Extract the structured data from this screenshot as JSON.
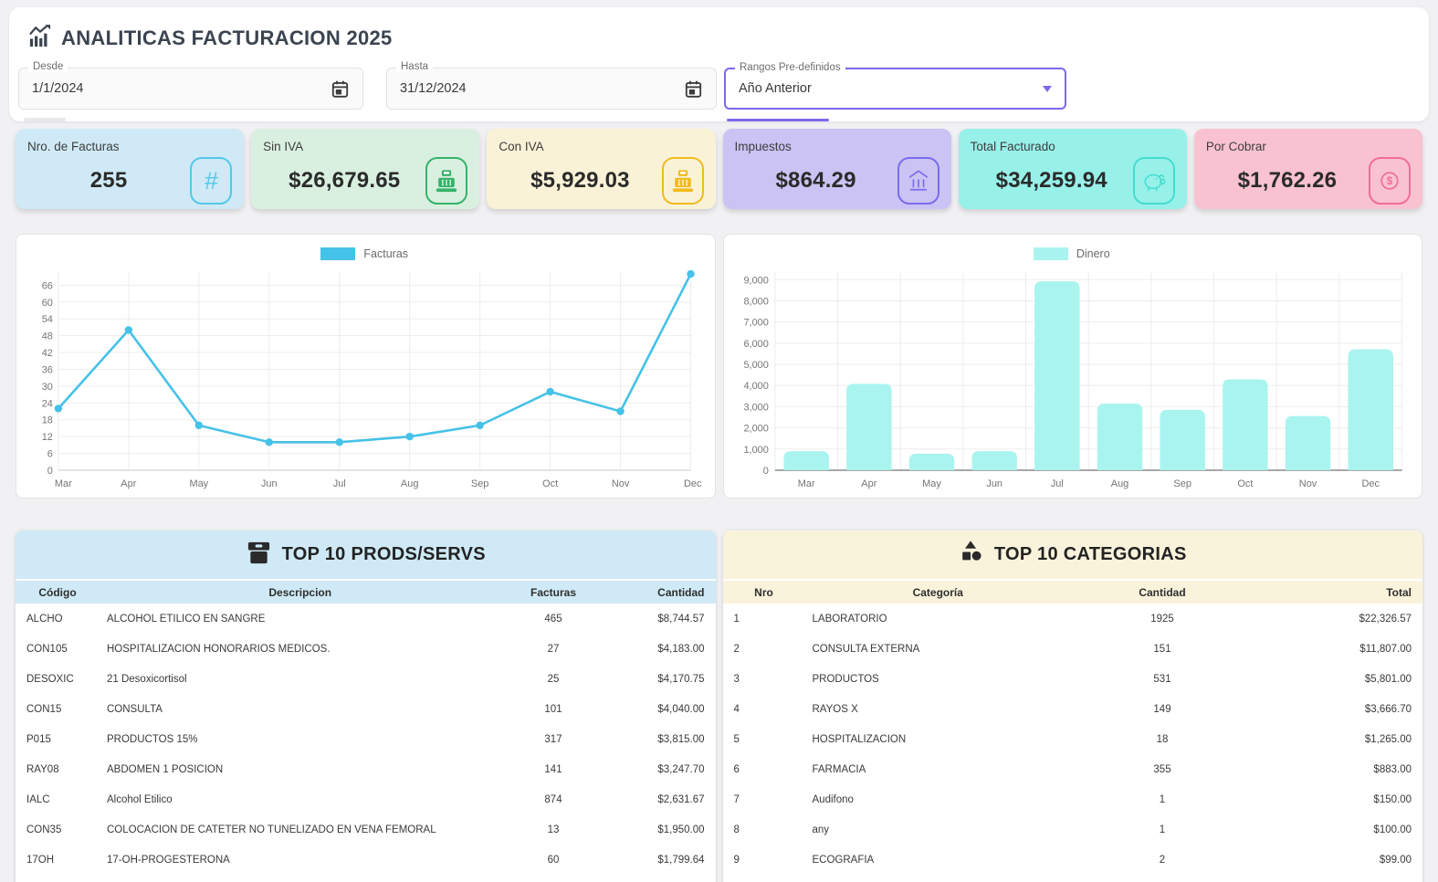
{
  "header": {
    "title": "ANALITICAS FACTURACION 2025"
  },
  "filters": {
    "desde": {
      "label": "Desde",
      "value": "1/1/2024"
    },
    "hasta": {
      "label": "Hasta",
      "value": "31/12/2024"
    },
    "rangos": {
      "label": "Rangos Pre-definidos",
      "value": "Año Anterior"
    }
  },
  "cards": [
    {
      "label": "Nro. de Facturas",
      "value": "255",
      "icon": "hash-icon",
      "bg": "#cfeaf6",
      "accent": "#55c8e8"
    },
    {
      "label": "Sin IVA",
      "value": "$26,679.65",
      "icon": "cash-register-icon",
      "bg": "#d9f0e0",
      "accent": "#35b36a"
    },
    {
      "label": "Con IVA",
      "value": "$5,929.03",
      "icon": "cash-register-icon",
      "bg": "#faf2d7",
      "accent": "#f0bb1f"
    },
    {
      "label": "Impuestos",
      "value": "$864.29",
      "icon": "bank-icon",
      "bg": "#cac3f3",
      "accent": "#7a6bee"
    },
    {
      "label": "Total Facturado",
      "value": "$34,259.94",
      "icon": "piggy-bank-icon",
      "bg": "#97f1e9",
      "accent": "#45dccf"
    },
    {
      "label": "Por Cobrar",
      "value": "$1,762.26",
      "icon": "dollar-icon",
      "bg": "#f8c2d1",
      "accent": "#f06e97"
    }
  ],
  "chart_data": [
    {
      "type": "line",
      "legend": "Facturas",
      "legend_position": "top",
      "color": "#45c2e8",
      "categories": [
        "Mar",
        "Apr",
        "May",
        "Jun",
        "Jul",
        "Aug",
        "Sep",
        "Oct",
        "Nov",
        "Dec"
      ],
      "values": [
        22,
        50,
        16,
        10,
        10,
        12,
        16,
        28,
        21,
        70
      ],
      "ylim": [
        0,
        71
      ],
      "yticks": [
        0,
        6,
        12,
        18,
        24,
        30,
        36,
        42,
        48,
        54,
        60,
        66
      ],
      "grid": true
    },
    {
      "type": "bar",
      "legend": "Dinero",
      "legend_position": "top",
      "color": "#a9f4ef",
      "categories": [
        "Mar",
        "Apr",
        "May",
        "Jun",
        "Jul",
        "Aug",
        "Sep",
        "Oct",
        "Nov",
        "Dec"
      ],
      "values": [
        900,
        4080,
        780,
        900,
        8920,
        3150,
        2850,
        4290,
        2560,
        5710
      ],
      "ylim": [
        0,
        9400
      ],
      "yticks": [
        0,
        1000,
        2000,
        3000,
        4000,
        5000,
        6000,
        7000,
        8000,
        9000
      ],
      "grid": true
    }
  ],
  "tables": [
    {
      "title": "TOP 10 PRODS/SERVS",
      "icon": "archive-box-icon",
      "header_bg": "#cfeaf6",
      "columns": [
        "Código",
        "Descripcion",
        "Facturas",
        "Cantidad"
      ],
      "rows": [
        [
          "ALCHO",
          "ALCOHOL ETILICO EN SANGRE",
          "465",
          "$8,744.57"
        ],
        [
          "CON105",
          "HOSPITALIZACION HONORARIOS MEDICOS.",
          "27",
          "$4,183.00"
        ],
        [
          "DESOXIC",
          "21 Desoxicortisol",
          "25",
          "$4,170.75"
        ],
        [
          "CON15",
          "CONSULTA",
          "101",
          "$4,040.00"
        ],
        [
          "P015",
          "PRODUCTOS 15%",
          "317",
          "$3,815.00"
        ],
        [
          "RAY08",
          "ABDOMEN 1 POSICION",
          "141",
          "$3,247.70"
        ],
        [
          "IALC",
          "Alcohol Etilico",
          "874",
          "$2,631.67"
        ],
        [
          "CON35",
          "COLOCACION DE CATETER NO TUNELIZADO EN VENA FEMORAL",
          "13",
          "$1,950.00"
        ],
        [
          "17OH",
          "17-OH-PROGESTERONA",
          "60",
          "$1,799.64"
        ]
      ]
    },
    {
      "title": "TOP 10 CATEGORIAS",
      "icon": "shapes-icon",
      "header_bg": "#faf3dc",
      "columns": [
        "Nro",
        "Categoría",
        "Cantidad",
        "Total"
      ],
      "rows": [
        [
          "1",
          "LABORATORIO",
          "1925",
          "$22,326.57"
        ],
        [
          "2",
          "CONSULTA EXTERNA",
          "151",
          "$11,807.00"
        ],
        [
          "3",
          "PRODUCTOS",
          "531",
          "$5,801.00"
        ],
        [
          "4",
          "RAYOS X",
          "149",
          "$3,666.70"
        ],
        [
          "5",
          "HOSPITALIZACION",
          "18",
          "$1,265.00"
        ],
        [
          "6",
          "FARMACIA",
          "355",
          "$883.00"
        ],
        [
          "7",
          "Audifono",
          "1",
          "$150.00"
        ],
        [
          "8",
          "any",
          "1",
          "$100.00"
        ],
        [
          "9",
          "ECOGRAFIA",
          "2",
          "$99.00"
        ]
      ]
    }
  ]
}
